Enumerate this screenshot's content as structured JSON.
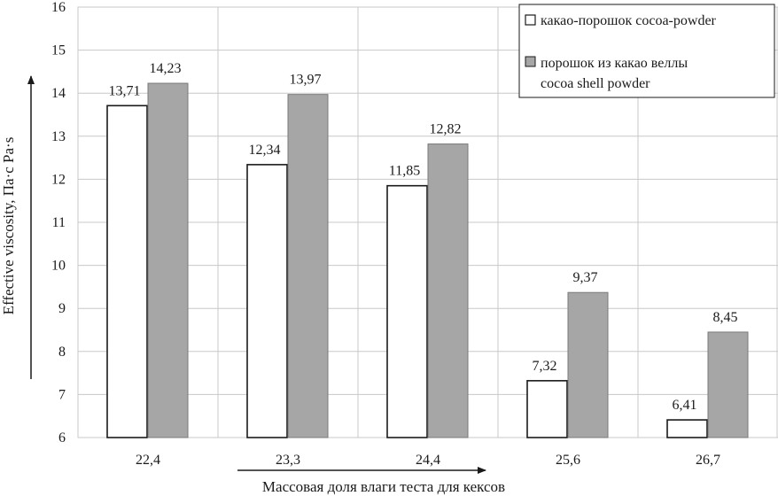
{
  "chart_data": {
    "type": "bar",
    "categories": [
      "22,4",
      "23,3",
      "24,4",
      "25,6",
      "26,7"
    ],
    "series": [
      {
        "name": "какао-порошок cocoa-powder",
        "values": [
          13.71,
          12.34,
          11.85,
          7.32,
          6.41
        ],
        "color": "#ffffff"
      },
      {
        "name": "порошок из какао веллы cocoa shell powder",
        "values": [
          14.23,
          13.97,
          12.82,
          9.37,
          8.45
        ],
        "color": "#a6a6a6"
      }
    ],
    "value_labels": [
      [
        "13,71",
        "12,34",
        "11,85",
        "7,32",
        "6,41"
      ],
      [
        "14,23",
        "13,97",
        "12,82",
        "9,37",
        "8,45"
      ]
    ],
    "legend_lines": [
      [
        "какао-порошок cocoa-powder"
      ],
      [
        "порошок из какао веллы",
        "cocoa shell powder"
      ]
    ],
    "xlabel": "Массовая доля влаги теста для кексов",
    "ylabel": "Effective viscosity, Па·с  Pa·s",
    "ylim": [
      6,
      16
    ],
    "yticks": [
      "6",
      "7",
      "8",
      "9",
      "10",
      "11",
      "12",
      "13",
      "14",
      "15",
      "16"
    ],
    "grid": true,
    "legend_position": "top-right"
  }
}
